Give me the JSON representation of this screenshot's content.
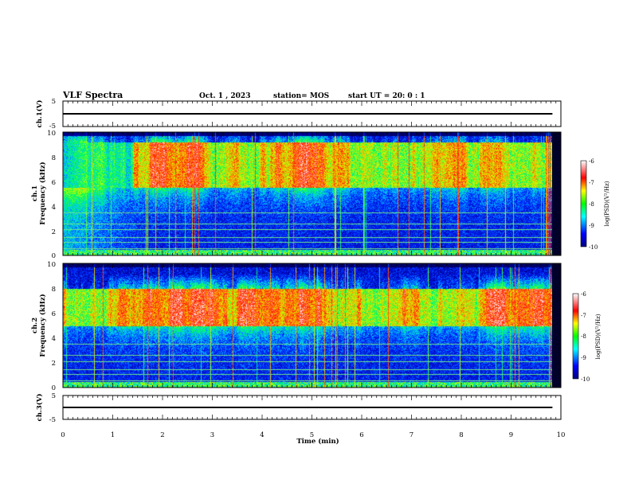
{
  "header": {
    "title": "VLF Spectra",
    "date": "Oct. 1 , 2023",
    "station": "station= MOS",
    "start_time": "start UT = 20: 0 : 1"
  },
  "chart_data": [
    {
      "type": "line",
      "ylabel": "ch.1(V)",
      "yticks": [
        "5",
        "-5"
      ],
      "ylim": [
        -5,
        5
      ],
      "xlim": [
        0,
        10
      ],
      "series": [
        {
          "x": [
            0,
            9.83
          ],
          "y": [
            0,
            0
          ]
        }
      ]
    },
    {
      "type": "heatmap",
      "ylabel_top": "ch.1",
      "ylabel": "Frequency (kHz)",
      "yticks": [
        "0",
        "2",
        "4",
        "6",
        "8",
        "10"
      ],
      "ylim": [
        0,
        10
      ],
      "xlim": [
        0,
        10
      ],
      "data_extent_x": [
        0,
        9.83
      ],
      "colorbar": {
        "label": "log(PSD)(V²/Hz)",
        "ticks": [
          "-6",
          "-7",
          "-8",
          "-9",
          "-10"
        ],
        "range": [
          -10,
          -6
        ]
      },
      "band_khz": [
        5.5,
        9.2
      ],
      "band_onset_min": 1.4
    },
    {
      "type": "heatmap",
      "ylabel_top": "ch.2",
      "ylabel": "Frequency (kHz)",
      "yticks": [
        "0",
        "2",
        "4",
        "6",
        "8",
        "10"
      ],
      "ylim": [
        0,
        10
      ],
      "xlim": [
        0,
        10
      ],
      "data_extent_x": [
        0,
        9.83
      ],
      "colorbar": {
        "label": "log(PSD)(V²/Hz)",
        "ticks": [
          "-6",
          "-7",
          "-8",
          "-9",
          "-10"
        ],
        "range": [
          -10,
          -6
        ]
      },
      "band_khz": [
        5.0,
        8.0
      ],
      "band_onset_min": 0
    },
    {
      "type": "line",
      "ylabel": "ch.3(V)",
      "yticks": [
        "5",
        "-5"
      ],
      "ylim": [
        -5,
        5
      ],
      "xlim": [
        0,
        10
      ],
      "series": [
        {
          "x": [
            0,
            9.83
          ],
          "y": [
            0,
            0
          ]
        }
      ]
    }
  ],
  "xaxis": {
    "label": "Time (min)",
    "ticks": [
      "0",
      "1",
      "2",
      "3",
      "4",
      "5",
      "6",
      "7",
      "8",
      "9",
      "10"
    ]
  }
}
